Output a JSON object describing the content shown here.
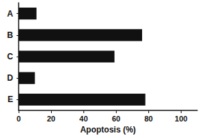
{
  "chart_data": {
    "type": "bar",
    "orientation": "horizontal",
    "categories": [
      "A",
      "B",
      "C",
      "D",
      "E"
    ],
    "values": [
      11,
      76,
      59,
      10,
      78
    ],
    "color": "#111111",
    "xlabel": "Apoptosis (%)",
    "xlim": [
      0,
      110
    ],
    "xticks": [
      0,
      20,
      40,
      60,
      80,
      100
    ],
    "grid": false
  }
}
